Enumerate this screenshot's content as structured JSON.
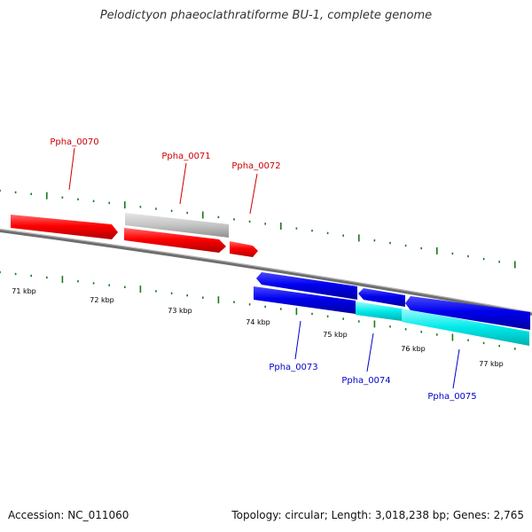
{
  "title": "Pelodictyon phaeoclathratiforme BU-1, complete genome",
  "footer": {
    "accession": "Accession: NC_011060",
    "topology": "Topology: circular; Length: 3,018,238 bp; Genes: 2,765"
  },
  "ticks": [
    {
      "label": "71 kbp"
    },
    {
      "label": "72 kbp"
    },
    {
      "label": "73 kbp"
    },
    {
      "label": "74 kbp"
    },
    {
      "label": "75 kbp"
    },
    {
      "label": "76 kbp"
    },
    {
      "label": "77 kbp"
    }
  ],
  "genes": [
    {
      "name": "Ppha_0070",
      "color": "#cc0000"
    },
    {
      "name": "Ppha_0071",
      "color": "#cc0000"
    },
    {
      "name": "Ppha_0072",
      "color": "#cc0000"
    },
    {
      "name": "Ppha_0073",
      "color": "#0000cc"
    },
    {
      "name": "Ppha_0074",
      "color": "#0000cc"
    },
    {
      "name": "Ppha_0075",
      "color": "#0000cc"
    }
  ],
  "colors": {
    "forward": "#ff0000",
    "reverse": "#0000e6",
    "rna": "#bbbbbb",
    "cds_alt": "#00e6e6",
    "backbone": "#777777",
    "tick": "#1a7a1a"
  }
}
